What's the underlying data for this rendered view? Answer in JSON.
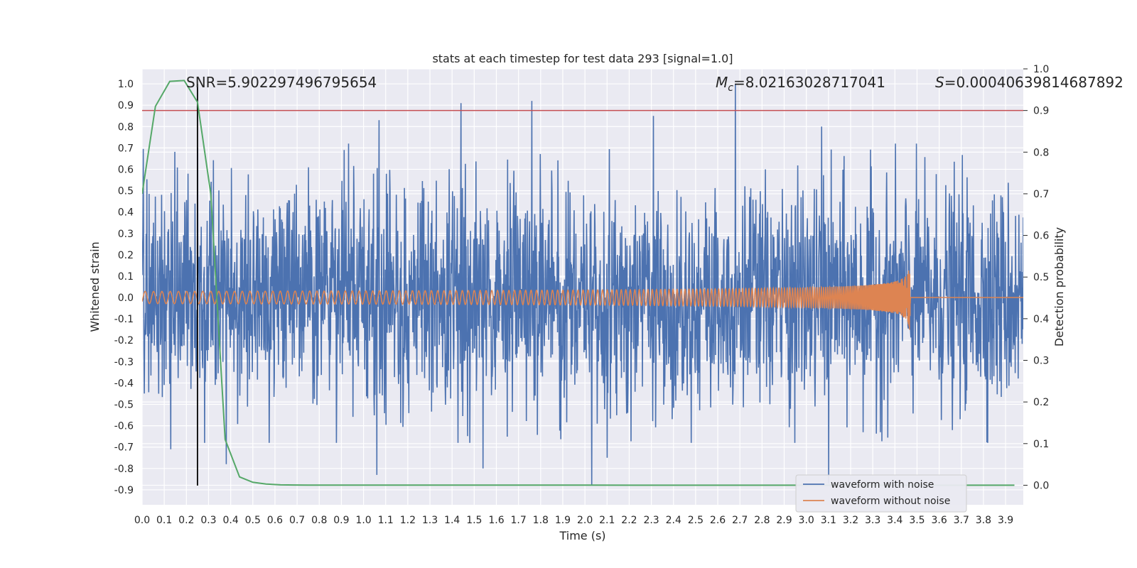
{
  "chart_data": {
    "type": "line",
    "title": "stats at each timestep for test data 293 [signal=1.0]",
    "xlabel": "Time (s)",
    "ylabel": "Whitened strain",
    "y2label": "Detection probability",
    "xlim": [
      0.0,
      3.98
    ],
    "ylim": [
      -0.97,
      1.07
    ],
    "y2lim": [
      -0.047,
      1.0
    ],
    "x_ticks": [
      "0.0",
      "0.1",
      "0.2",
      "0.3",
      "0.4",
      "0.5",
      "0.6",
      "0.7",
      "0.8",
      "0.9",
      "1.0",
      "1.1",
      "1.2",
      "1.3",
      "1.4",
      "1.5",
      "1.6",
      "1.7",
      "1.8",
      "1.9",
      "2.0",
      "2.1",
      "2.2",
      "2.3",
      "2.4",
      "2.5",
      "2.6",
      "2.7",
      "2.8",
      "2.9",
      "3.0",
      "3.1",
      "3.2",
      "3.3",
      "3.4",
      "3.5",
      "3.6",
      "3.7",
      "3.8",
      "3.9"
    ],
    "y_ticks": [
      "1.0",
      "0.9",
      "0.8",
      "0.7",
      "0.6",
      "0.5",
      "0.4",
      "0.3",
      "0.2",
      "0.1",
      "0.0",
      "-0.1",
      "-0.2",
      "-0.3",
      "-0.4",
      "-0.5",
      "-0.6",
      "-0.7",
      "-0.8",
      "-0.9"
    ],
    "y2_ticks": [
      "1.0",
      "0.9",
      "0.8",
      "0.7",
      "0.6",
      "0.5",
      "0.4",
      "0.3",
      "0.2",
      "0.1",
      "0.0"
    ],
    "annotations": {
      "snr": "SNR=5.902297496795654",
      "mc_symbol": "M",
      "mc_sub": "c",
      "mc_value": "=8.02163028717041",
      "s_symbol": "S",
      "s_value": "=0.00040639814687892"
    },
    "threshold_y2": 0.9,
    "marker_x": 0.25,
    "series": [
      {
        "name": "waveform with noise",
        "color": "#4c72b0",
        "amplitude": 0.3,
        "peaks": [
          [
            1.07,
            0.83
          ],
          [
            1.44,
            0.91
          ],
          [
            1.76,
            0.92
          ],
          [
            2.1,
            0.82
          ],
          [
            2.31,
            0.85
          ],
          [
            2.68,
            1.0
          ],
          [
            3.07,
            0.8
          ],
          [
            2.03,
            -0.88
          ],
          [
            1.06,
            -0.83
          ],
          [
            1.54,
            -0.8
          ],
          [
            0.38,
            -0.78
          ],
          [
            3.1,
            -0.87
          ],
          [
            2.1,
            -0.75
          ],
          [
            0.13,
            -0.71
          ],
          [
            0.25,
            0.7
          ]
        ]
      },
      {
        "name": "waveform without noise",
        "color": "#dd8452",
        "merger_x": 3.47,
        "peak_amplitude": 0.22
      },
      {
        "name": "detection probability",
        "color": "#55a868",
        "x": [
          0.0,
          0.06,
          0.125,
          0.19,
          0.25,
          0.31,
          0.375,
          0.44,
          0.5,
          0.56,
          0.625,
          0.69,
          0.75,
          1.0,
          2.0,
          3.0,
          3.94
        ],
        "y": [
          0.7,
          0.91,
          0.97,
          0.972,
          0.92,
          0.7,
          0.11,
          0.02,
          0.007,
          0.003,
          0.001,
          0.0005,
          0.0003,
          0.0002,
          0.0002,
          0.0001,
          0.0001
        ]
      }
    ],
    "threshold_color": "#c44e52",
    "marker_color": "#000000",
    "grid": true,
    "legend_position": "lower-right",
    "background": "#eaeaf2"
  }
}
